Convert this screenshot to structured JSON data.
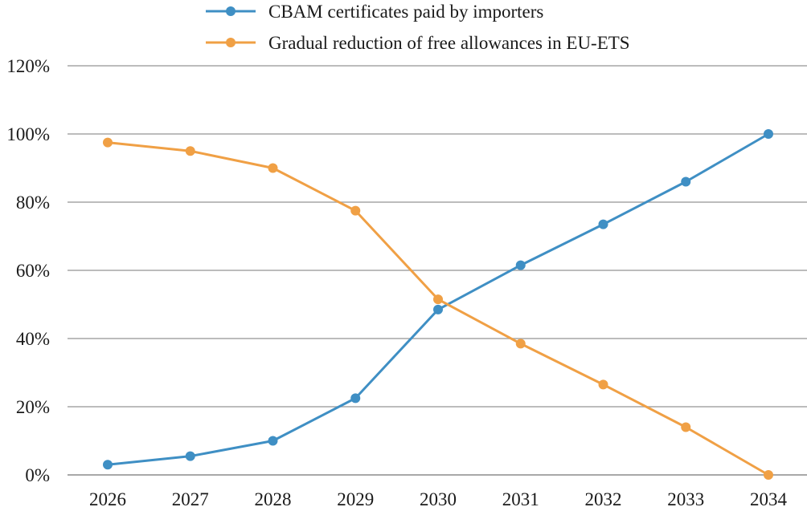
{
  "chart_data": {
    "type": "line",
    "title": "",
    "xlabel": "",
    "ylabel": "",
    "categories": [
      "2026",
      "2027",
      "2028",
      "2029",
      "2030",
      "2031",
      "2032",
      "2033",
      "2034"
    ],
    "ylim": [
      0,
      120
    ],
    "yticks": [
      "0%",
      "20%",
      "40%",
      "60%",
      "80%",
      "100%",
      "120%"
    ],
    "grid": true,
    "legend_position": "top-center",
    "series": [
      {
        "name": "CBAM certificates paid by importers",
        "color": "#3f8fc4",
        "values": [
          3,
          5.5,
          10,
          22.5,
          48.5,
          61.5,
          73.5,
          86,
          100
        ]
      },
      {
        "name": "Gradual reduction of free allowances in EU-ETS",
        "color": "#f0a045",
        "values": [
          97.5,
          95,
          90,
          77.5,
          51.5,
          38.5,
          26.5,
          14,
          0
        ]
      }
    ]
  }
}
